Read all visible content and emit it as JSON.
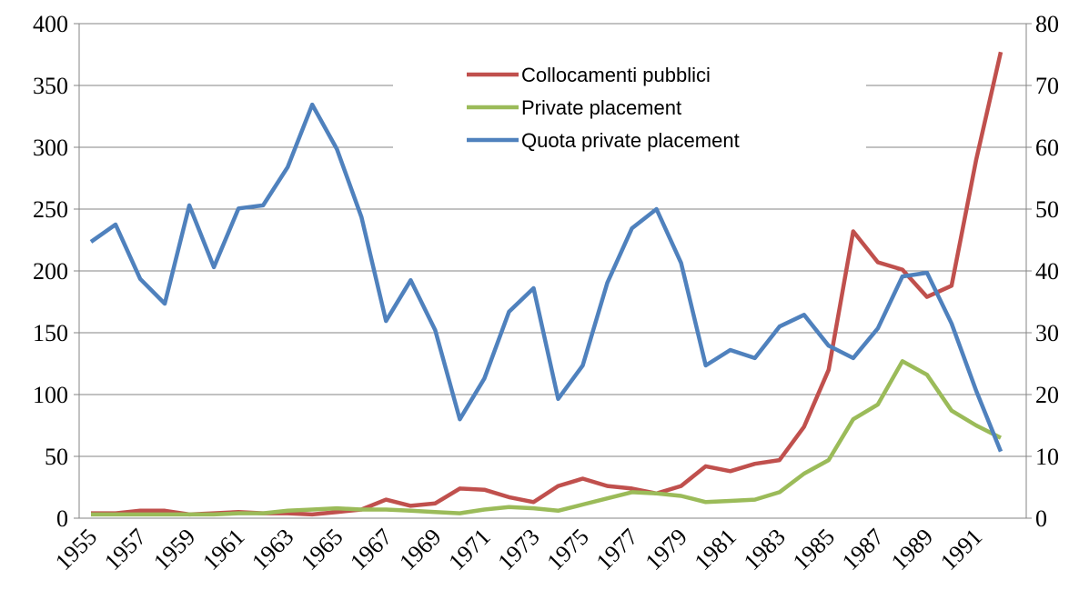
{
  "chart_data": {
    "type": "line",
    "categories": [
      "1955",
      null,
      "1957",
      null,
      "1959",
      null,
      "1961",
      null,
      "1963",
      null,
      "1965",
      null,
      "1967",
      null,
      "1969",
      null,
      "1971",
      null,
      "1973",
      null,
      "1975",
      null,
      "1977",
      null,
      "1979",
      null,
      "1981",
      null,
      "1983",
      null,
      "1985",
      null,
      "1987",
      null,
      "1989",
      null,
      "1991",
      null
    ],
    "series": [
      {
        "name": "Collocamenti pubblici",
        "color": "#c0504d",
        "values": [
          4,
          4,
          6,
          6,
          3,
          4,
          5,
          4,
          4,
          3,
          5,
          7,
          15,
          10,
          12,
          24,
          23,
          17,
          13,
          26,
          32,
          26,
          24,
          20,
          26,
          42,
          38,
          44,
          47,
          74,
          120,
          232,
          207,
          201,
          179,
          188,
          290,
          377
        ]
      },
      {
        "name": "Private placement",
        "color": "#9bbb59",
        "values": [
          3,
          3,
          3,
          3,
          3,
          3,
          4,
          4,
          6,
          7,
          8,
          7,
          7,
          6,
          5,
          4,
          7,
          9,
          8,
          6,
          11,
          16,
          21,
          20,
          18,
          13,
          14,
          15,
          21,
          36,
          47,
          80,
          92,
          127,
          116,
          87,
          75,
          65
        ]
      },
      {
        "name": "Quota private placement",
        "color": "#4f81bd",
        "axis": "y2",
        "values": [
          44.7,
          47.5,
          38.7,
          34.7,
          50.6,
          40.6,
          50.1,
          50.6,
          56.8,
          66.9,
          59.7,
          48.7,
          31.9,
          38.5,
          30.4,
          16.0,
          22.6,
          33.4,
          37.2,
          19.3,
          24.7,
          38.1,
          46.9,
          50.0,
          41.3,
          24.7,
          27.2,
          25.9,
          31.0,
          32.9,
          27.9,
          25.9,
          30.7,
          39.1,
          39.7,
          31.5,
          20.6,
          10.8
        ]
      }
    ],
    "ylim": [
      0,
      400
    ],
    "yticks": [
      0,
      50,
      100,
      150,
      200,
      250,
      300,
      350,
      400
    ],
    "y2lim": [
      0,
      80
    ],
    "y2ticks": [
      0,
      10,
      20,
      30,
      40,
      50,
      60,
      70,
      80
    ],
    "grid": true,
    "legend": "top"
  }
}
